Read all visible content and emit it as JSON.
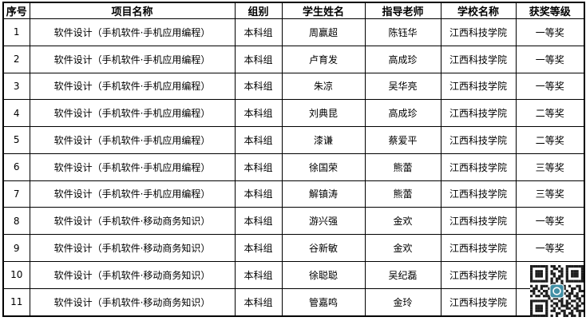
{
  "table": {
    "headers": [
      "序号",
      "项目名称",
      "组别",
      "学生姓名",
      "指导老师",
      "学校名称",
      "获奖等级"
    ],
    "rows": [
      {
        "no": "1",
        "project": "软件设计（手机软件·手机应用编程）",
        "group": "本科组",
        "student": "周赢超",
        "teacher": "陈钰华",
        "school": "江西科技学院",
        "award": "一等奖"
      },
      {
        "no": "2",
        "project": "软件设计（手机软件·手机应用编程）",
        "group": "本科组",
        "student": "卢育发",
        "teacher": "高成珍",
        "school": "江西科技学院",
        "award": "一等奖"
      },
      {
        "no": "3",
        "project": "软件设计（手机软件·手机应用编程）",
        "group": "本科组",
        "student": "朱凉",
        "teacher": "吴华亮",
        "school": "江西科技学院",
        "award": "一等奖"
      },
      {
        "no": "4",
        "project": "软件设计（手机软件·手机应用编程）",
        "group": "本科组",
        "student": "刘典昆",
        "teacher": "高成珍",
        "school": "江西科技学院",
        "award": "二等奖"
      },
      {
        "no": "5",
        "project": "软件设计（手机软件·手机应用编程）",
        "group": "本科组",
        "student": "漆谦",
        "teacher": "蔡爱平",
        "school": "江西科技学院",
        "award": "二等奖"
      },
      {
        "no": "6",
        "project": "软件设计（手机软件·手机应用编程）",
        "group": "本科组",
        "student": "徐国荣",
        "teacher": "熊蕾",
        "school": "江西科技学院",
        "award": "三等奖"
      },
      {
        "no": "7",
        "project": "软件设计（手机软件·手机应用编程）",
        "group": "本科组",
        "student": "解镇涛",
        "teacher": "熊蕾",
        "school": "江西科技学院",
        "award": "三等奖"
      },
      {
        "no": "8",
        "project": "软件设计（手机软件·移动商务知识）",
        "group": "本科组",
        "student": "游兴强",
        "teacher": "金欢",
        "school": "江西科技学院",
        "award": "一等奖"
      },
      {
        "no": "9",
        "project": "软件设计（手机软件·移动商务知识）",
        "group": "本科组",
        "student": "谷新敏",
        "teacher": "金欢",
        "school": "江西科技学院",
        "award": "一等奖"
      },
      {
        "no": "10",
        "project": "软件设计（手机软件·移动商务知识）",
        "group": "本科组",
        "student": "徐聪聪",
        "teacher": "吴纪磊",
        "school": "江西科技学院",
        "award": ""
      },
      {
        "no": "11",
        "project": "软件设计（手机软件·移动商务知识）",
        "group": "本科组",
        "student": "管嘉鸣",
        "teacher": "金玲",
        "school": "江西科技学院",
        "award": ""
      }
    ]
  },
  "qr": {
    "icon": "qr-code",
    "module_color": "#1c1c1c",
    "logo_color": "#418fa5",
    "modules": [
      "111111101101001111111",
      "100000100110101000001",
      "101110101001101011101",
      "101110101100101011101",
      "101110100101101011101",
      "100000101011001000001",
      "111111101010101111111",
      "000000001100100000000",
      "101011101011110100110",
      "011010010110010011010",
      "110101100111101010011",
      "010010101100110110100",
      "101101110100101101101",
      "000000010110100100110",
      "111111101001101011010",
      "100000100110101100101",
      "101110101010111010110",
      "101110100101001101100",
      "101110101100110010111",
      "100000100011010110010",
      "111111101010011011010"
    ]
  }
}
